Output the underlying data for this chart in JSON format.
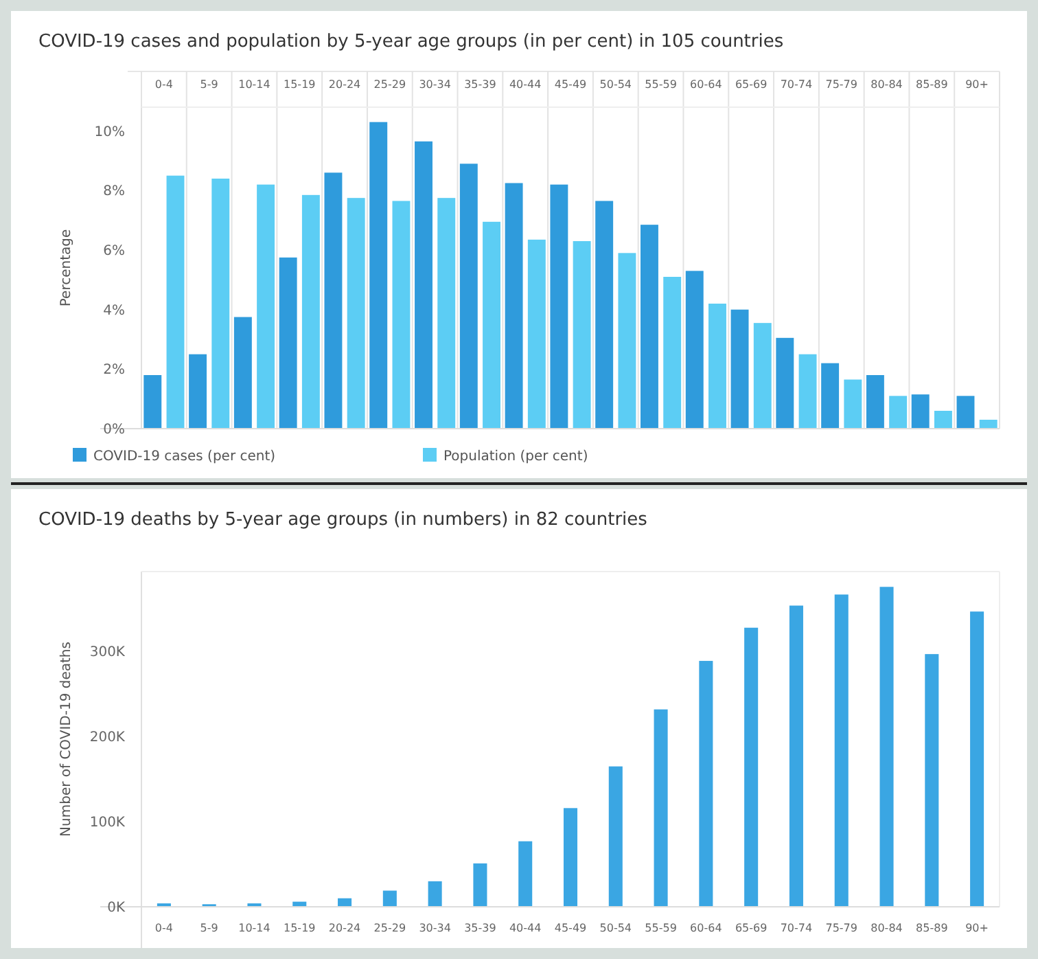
{
  "chart_data": [
    {
      "type": "bar",
      "title": "COVID-19 cases and population by 5-year age groups (in per cent) in 105 countries",
      "ylabel": "Percentage",
      "categories": [
        "0-4",
        "5-9",
        "10-14",
        "15-19",
        "20-24",
        "25-29",
        "30-34",
        "35-39",
        "40-44",
        "45-49",
        "50-54",
        "55-59",
        "60-64",
        "65-69",
        "70-74",
        "75-79",
        "80-84",
        "85-89",
        "90+"
      ],
      "series": [
        {
          "name": "COVID-19 cases (per cent)",
          "color": "#2f9bdc",
          "values": [
            1.8,
            2.5,
            3.75,
            5.75,
            8.6,
            10.3,
            9.65,
            8.9,
            8.25,
            8.2,
            7.65,
            6.85,
            5.3,
            4.0,
            3.05,
            2.2,
            1.8,
            1.15,
            1.1
          ]
        },
        {
          "name": "Population (per cent)",
          "color": "#5ccdf4",
          "values": [
            8.5,
            8.4,
            8.2,
            7.85,
            7.75,
            7.65,
            7.75,
            6.95,
            6.35,
            6.3,
            5.9,
            5.1,
            4.2,
            3.55,
            2.5,
            1.65,
            1.1,
            0.6,
            0.3
          ]
        }
      ],
      "ylim": [
        0,
        10.8
      ],
      "yticks": [
        {
          "value": 0,
          "label": "0%"
        },
        {
          "value": 2,
          "label": "2%"
        },
        {
          "value": 4,
          "label": "4%"
        },
        {
          "value": 6,
          "label": "6%"
        },
        {
          "value": 8,
          "label": "8%"
        },
        {
          "value": 10,
          "label": "10%"
        }
      ],
      "grid": "x",
      "legend": "bottom"
    },
    {
      "type": "bar",
      "title": "COVID-19 deaths by 5-year age groups (in numbers) in 82 countries",
      "ylabel": "Number of COVID-19 deaths",
      "categories": [
        "0-4",
        "5-9",
        "10-14",
        "15-19",
        "20-24",
        "25-29",
        "30-34",
        "35-39",
        "40-44",
        "45-49",
        "50-54",
        "55-59",
        "60-64",
        "65-69",
        "70-74",
        "75-79",
        "80-84",
        "85-89",
        "90+"
      ],
      "series": [
        {
          "color": "#3aa6e3",
          "values": [
            4000,
            3000,
            4000,
            6000,
            10000,
            19000,
            30000,
            51000,
            77000,
            116000,
            165000,
            232000,
            289000,
            328000,
            354000,
            367000,
            376000,
            297000,
            347000
          ]
        }
      ],
      "ylim": [
        0,
        394000
      ],
      "yticks": [
        {
          "value": 0,
          "label": "0K"
        },
        {
          "value": 100000,
          "label": "100K"
        },
        {
          "value": 200000,
          "label": "200K"
        },
        {
          "value": 300000,
          "label": "300K"
        }
      ]
    }
  ]
}
